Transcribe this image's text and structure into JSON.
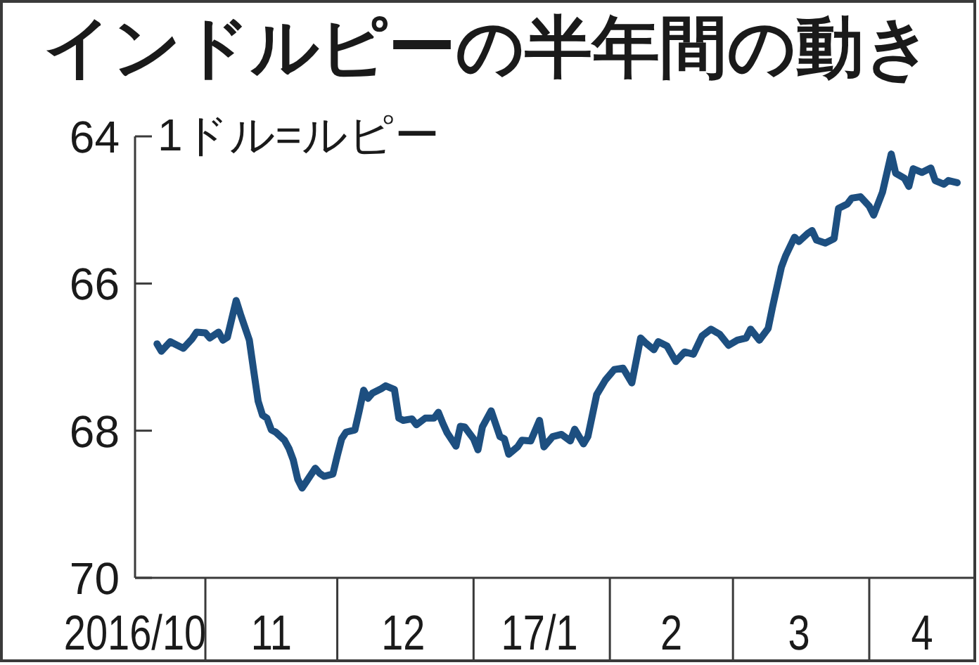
{
  "chart_data": {
    "type": "line",
    "title": "インドルピーの半年間の動き",
    "ylabel": "1ドル=ルピー",
    "color": "#1d4f80",
    "marker": "none",
    "line_style": "solid",
    "x": [
      "2016-10-21",
      "2016-10-22",
      "2016-10-24",
      "2016-10-25",
      "2016-10-27",
      "2016-10-29",
      "2016-10-30",
      "2016-11-01",
      "2016-11-02",
      "2016-11-04",
      "2016-11-05",
      "2016-11-06",
      "2016-11-08",
      "2016-11-09",
      "2016-11-11",
      "2016-11-12",
      "2016-11-13",
      "2016-11-14",
      "2016-11-15",
      "2016-11-16",
      "2016-11-17",
      "2016-11-19",
      "2016-11-20",
      "2016-11-21",
      "2016-11-22",
      "2016-11-23",
      "2016-11-24",
      "2016-11-26",
      "2016-11-27",
      "2016-11-28",
      "2016-11-30",
      "2016-12-01",
      "2016-12-02",
      "2016-12-03",
      "2016-12-05",
      "2016-12-06",
      "2016-12-07",
      "2016-12-08",
      "2016-12-09",
      "2016-12-11",
      "2016-12-12",
      "2016-12-14",
      "2016-12-15",
      "2016-12-16",
      "2016-12-18",
      "2016-12-19",
      "2016-12-21",
      "2016-12-23",
      "2016-12-24",
      "2016-12-25",
      "2016-12-26",
      "2016-12-28",
      "2016-12-29",
      "2016-12-30",
      "2017-01-01",
      "2017-01-02",
      "2017-01-03",
      "2017-01-05",
      "2017-01-07",
      "2017-01-08",
      "2017-01-09",
      "2017-01-11",
      "2017-01-12",
      "2017-01-14",
      "2017-01-16",
      "2017-01-17",
      "2017-01-19",
      "2017-01-21",
      "2017-01-23",
      "2017-01-24",
      "2017-01-26",
      "2017-01-27",
      "2017-01-29",
      "2017-01-31",
      "2017-02-02",
      "2017-02-04",
      "2017-02-06",
      "2017-02-08",
      "2017-02-09",
      "2017-02-11",
      "2017-02-12",
      "2017-02-14",
      "2017-02-16",
      "2017-02-18",
      "2017-02-20",
      "2017-02-22",
      "2017-02-24",
      "2017-02-26",
      "2017-02-28",
      "2017-03-02",
      "2017-03-04",
      "2017-03-05",
      "2017-03-07",
      "2017-03-09",
      "2017-03-10",
      "2017-03-12",
      "2017-03-13",
      "2017-03-15",
      "2017-03-16",
      "2017-03-18",
      "2017-03-19",
      "2017-03-20",
      "2017-03-22",
      "2017-03-24",
      "2017-03-25",
      "2017-03-27",
      "2017-03-28",
      "2017-03-30",
      "2017-04-01",
      "2017-04-02",
      "2017-04-04",
      "2017-04-05",
      "2017-04-06",
      "2017-04-07",
      "2017-04-09",
      "2017-04-10",
      "2017-04-11",
      "2017-04-13",
      "2017-04-15",
      "2017-04-16",
      "2017-04-18",
      "2017-04-19",
      "2017-04-21"
    ],
    "values": [
      66.82,
      66.92,
      66.79,
      66.82,
      66.88,
      66.75,
      66.66,
      66.67,
      66.74,
      66.66,
      66.77,
      66.73,
      66.23,
      66.42,
      66.77,
      67.19,
      67.6,
      67.79,
      67.83,
      67.99,
      68.02,
      68.13,
      68.24,
      68.4,
      68.66,
      68.78,
      68.69,
      68.51,
      68.58,
      68.62,
      68.59,
      68.34,
      68.11,
      68.02,
      67.99,
      67.73,
      67.45,
      67.56,
      67.49,
      67.43,
      67.39,
      67.44,
      67.83,
      67.86,
      67.84,
      67.92,
      67.83,
      67.83,
      67.75,
      67.9,
      68.03,
      68.21,
      67.94,
      67.95,
      68.11,
      68.26,
      67.95,
      67.73,
      68.08,
      68.11,
      68.32,
      68.22,
      68.13,
      68.14,
      67.86,
      68.22,
      68.08,
      68.05,
      68.14,
      67.98,
      68.18,
      68.08,
      67.51,
      67.31,
      67.17,
      67.15,
      67.35,
      66.74,
      66.8,
      66.9,
      66.79,
      66.85,
      67.06,
      66.93,
      66.96,
      66.71,
      66.62,
      66.69,
      66.84,
      66.77,
      66.74,
      66.62,
      66.77,
      66.61,
      66.32,
      65.78,
      65.62,
      65.37,
      65.43,
      65.32,
      65.28,
      65.41,
      65.45,
      65.39,
      64.98,
      64.92,
      64.84,
      64.82,
      64.95,
      65.07,
      64.76,
      64.5,
      64.24,
      64.5,
      64.57,
      64.68,
      64.44,
      64.49,
      64.43,
      64.6,
      64.65,
      64.6,
      64.63
    ],
    "xlim": [
      "2016-10-16",
      "2017-04-25"
    ],
    "xticks": [
      {
        "value": "2016-10-16",
        "label": "2016/10"
      },
      {
        "value": "2016-11-01",
        "label": null
      },
      {
        "value": "2016-11-16",
        "label": "11"
      },
      {
        "value": "2016-12-01",
        "label": null
      },
      {
        "value": "2016-12-16",
        "label": "12"
      },
      {
        "value": "2017-01-01",
        "label": null
      },
      {
        "value": "2017-01-16",
        "label": "17/1"
      },
      {
        "value": "2017-02-01",
        "label": null
      },
      {
        "value": "2017-02-15",
        "label": "2"
      },
      {
        "value": "2017-03-01",
        "label": null
      },
      {
        "value": "2017-03-16",
        "label": "3"
      },
      {
        "value": "2017-04-01",
        "label": null
      },
      {
        "value": "2017-04-13",
        "label": "4"
      }
    ],
    "ylim": [
      70,
      64
    ],
    "yticks": [
      64,
      66,
      68,
      70
    ]
  }
}
